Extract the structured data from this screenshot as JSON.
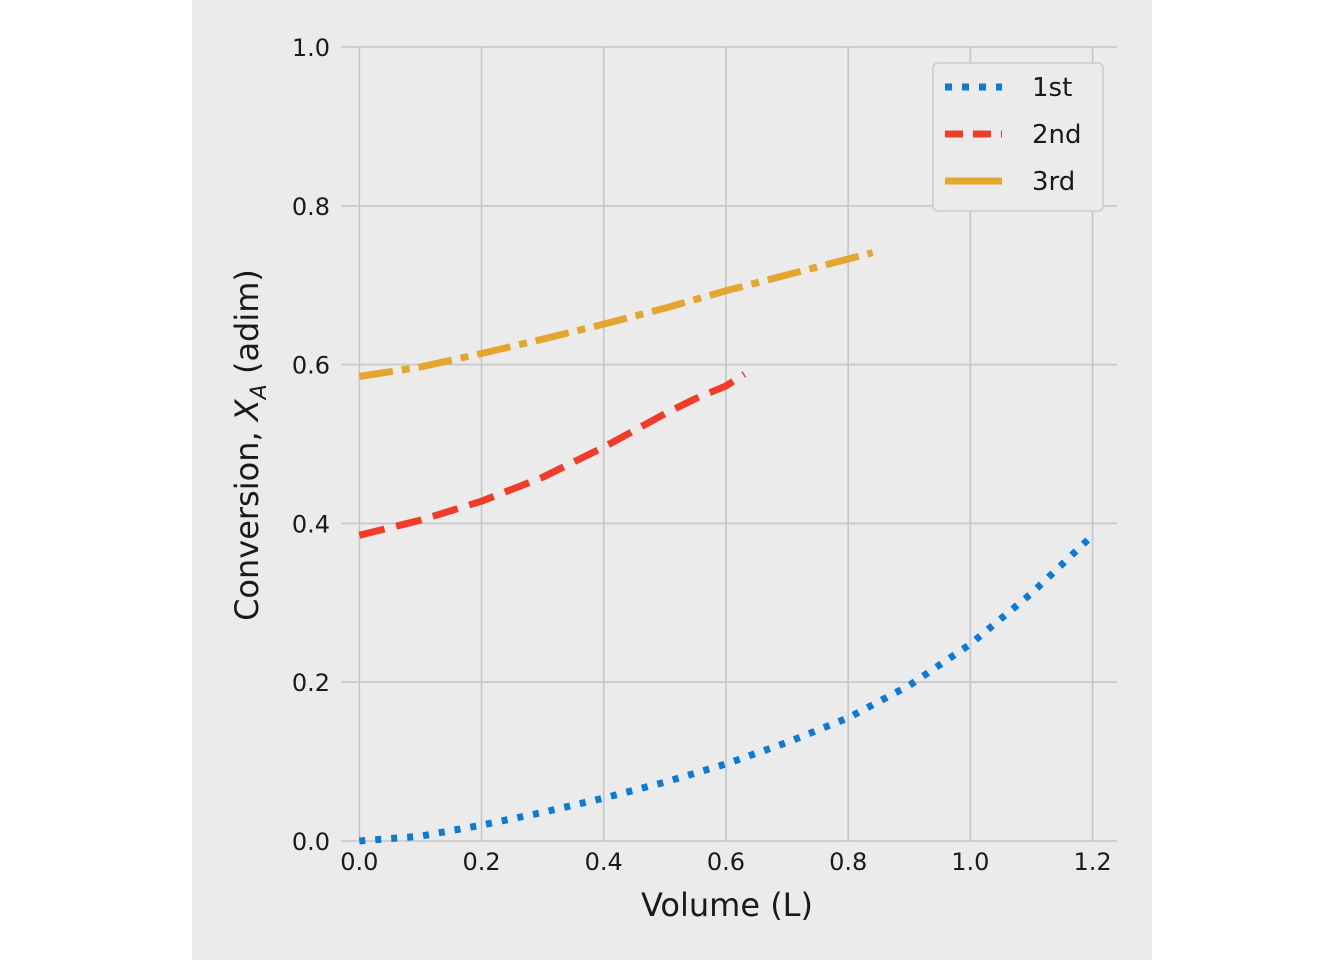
{
  "chart_data": {
    "type": "line",
    "xlabel": "Volume (L)",
    "ylabel_prefix": "Conversion, ",
    "ylabel_var": "X",
    "ylabel_sub": "A",
    "ylabel_suffix": " (adim)",
    "xlim": [
      -0.03,
      1.24
    ],
    "ylim": [
      0.0,
      1.0
    ],
    "xticks": [
      0.0,
      0.2,
      0.4,
      0.6,
      0.8,
      1.0,
      1.2
    ],
    "yticks": [
      0.0,
      0.2,
      0.4,
      0.6,
      0.8,
      1.0
    ],
    "xtick_labels": [
      "0.0",
      "0.2",
      "0.4",
      "0.6",
      "0.8",
      "1.0",
      "1.2"
    ],
    "ytick_labels": [
      "0.0",
      "0.2",
      "0.4",
      "0.6",
      "0.8",
      "1.0"
    ],
    "grid": true,
    "legend_position": "top-right",
    "background_color": "#ebebeb",
    "grid_color": "#c6c6c6",
    "series": [
      {
        "name": "1st",
        "color": "#0b7bd6",
        "style": "dotted",
        "x": [
          0.0,
          0.1,
          0.2,
          0.3,
          0.4,
          0.5,
          0.6,
          0.7,
          0.8,
          0.9,
          1.0,
          1.1,
          1.2
        ],
        "y": [
          0.0,
          0.006,
          0.02,
          0.036,
          0.054,
          0.074,
          0.097,
          0.124,
          0.155,
          0.196,
          0.248,
          0.312,
          0.385
        ]
      },
      {
        "name": "2nd",
        "color": "#f13c28",
        "style": "dashed",
        "x": [
          0.0,
          0.1,
          0.2,
          0.3,
          0.4,
          0.5,
          0.55,
          0.6,
          0.63
        ],
        "y": [
          0.385,
          0.404,
          0.428,
          0.458,
          0.496,
          0.538,
          0.557,
          0.573,
          0.588
        ]
      },
      {
        "name": "3rd",
        "color": "#e3a62f",
        "style": "dashdot",
        "x": [
          0.0,
          0.1,
          0.2,
          0.3,
          0.4,
          0.5,
          0.6,
          0.7,
          0.8,
          0.84
        ],
        "y": [
          0.585,
          0.597,
          0.614,
          0.632,
          0.651,
          0.671,
          0.693,
          0.713,
          0.733,
          0.741
        ]
      }
    ]
  }
}
